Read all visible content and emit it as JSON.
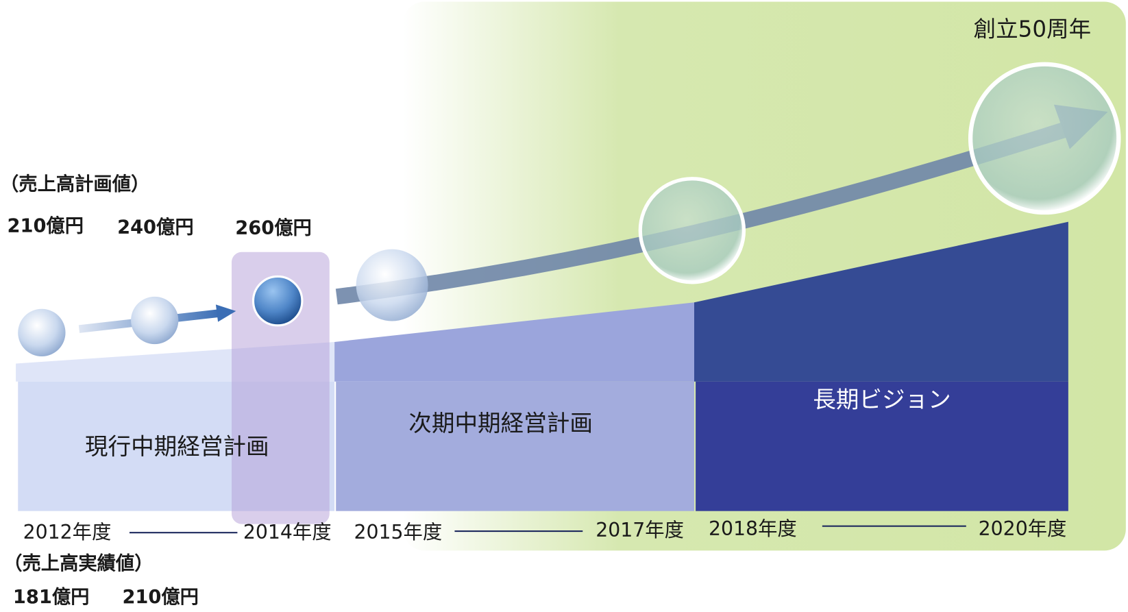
{
  "milestone": "創立50周年",
  "plan_heading": "（売上高計画値）",
  "plan_values": [
    "210億円",
    "240億円",
    "260億円"
  ],
  "actual_heading": "（売上高実績値）",
  "actual_values": [
    "181億円",
    "210億円"
  ],
  "phases": [
    "現行中期経営計画",
    "次期中期経営計画",
    "長期ビジョン"
  ],
  "years": [
    "2012年度",
    "2014年度",
    "2015年度",
    "2017年度",
    "2018年度",
    "2020年度"
  ]
}
